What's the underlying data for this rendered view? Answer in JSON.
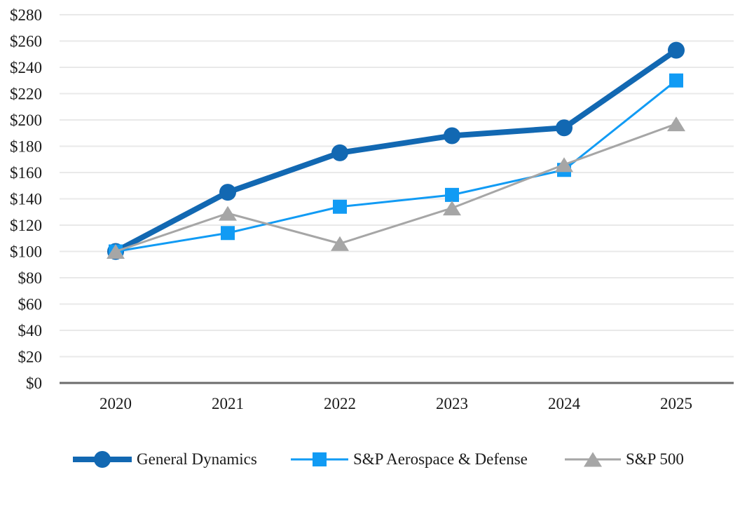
{
  "chart_data": {
    "type": "line",
    "categories": [
      "2020",
      "2021",
      "2022",
      "2023",
      "2024",
      "2025"
    ],
    "series": [
      {
        "name": "General Dynamics",
        "color": "#1268B2",
        "marker": "circle",
        "line_width": 8,
        "values": [
          100,
          145,
          175,
          188,
          194,
          253
        ]
      },
      {
        "name": "S&P Aerospace & Defense",
        "color": "#119BF4",
        "marker": "square",
        "line_width": 3,
        "values": [
          100,
          114,
          134,
          143,
          162,
          230
        ]
      },
      {
        "name": "S&P 500",
        "color": "#A6A6A6",
        "marker": "triangle",
        "line_width": 3,
        "values": [
          100,
          129,
          106,
          133,
          166,
          197
        ]
      }
    ],
    "ylim": [
      0,
      280
    ],
    "ytick_step": 20,
    "ytick_prefix": "$",
    "xlabel": "",
    "ylabel": "",
    "grid": "horizontal",
    "legend_position": "bottom",
    "gridline_color": "#E9E9E9",
    "axis_color": "#6B6B6B",
    "text_color": "#1A1A1A",
    "background_color": "#FFFFFF"
  }
}
